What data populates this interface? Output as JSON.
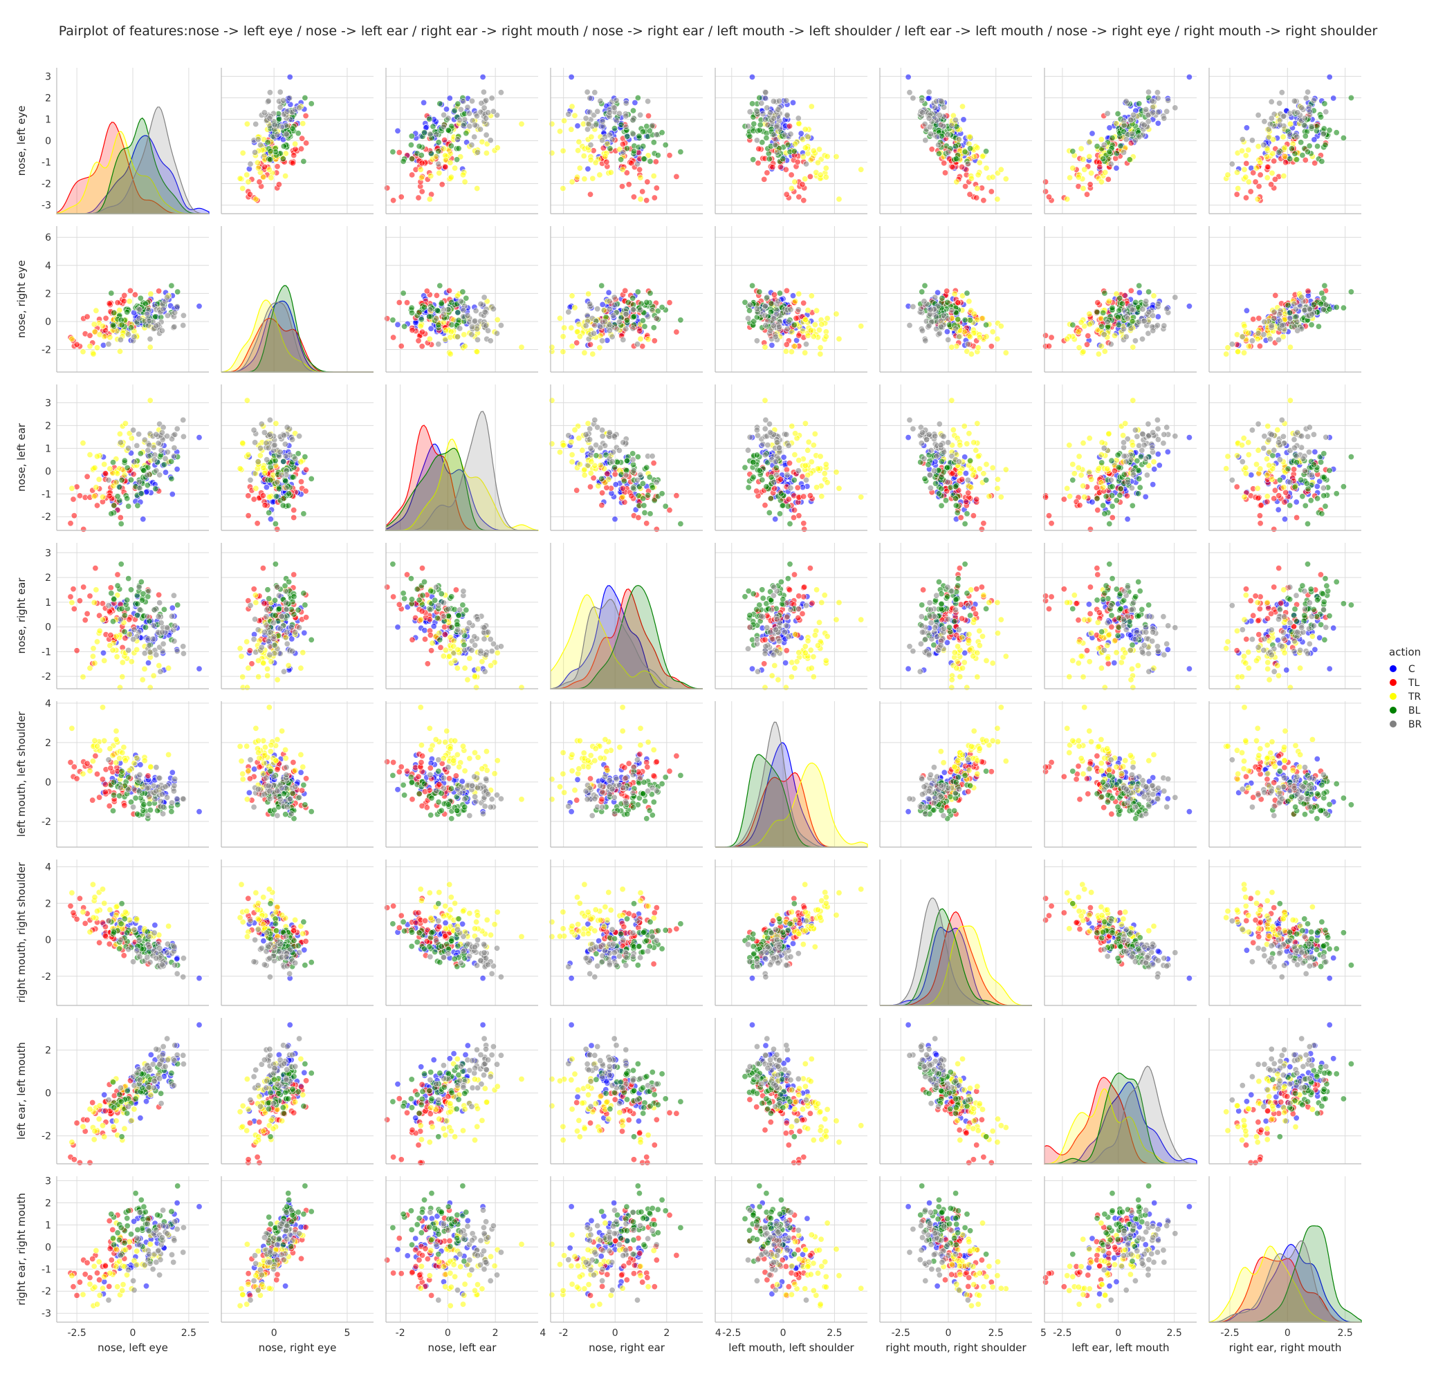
{
  "chart_data": {
    "type": "scatter",
    "title": "Pairplot of features:nose -> left eye / nose -> left ear / right ear -> right mouth / nose -> right ear / left mouth -> left shoulder / left ear -> left mouth / nose -> right eye / right mouth -> right shoulder",
    "features": [
      {
        "name": "nose, left eye",
        "range": [
          -3.4,
          3.4
        ],
        "ticks": [
          -3,
          -2,
          -1,
          0,
          1,
          2,
          3
        ],
        "xticks": [
          -2.5,
          0,
          2.5
        ]
      },
      {
        "name": "nose, right eye",
        "range": [
          -3.6,
          6.8
        ],
        "ticks": [
          -2,
          0,
          2,
          4,
          6
        ],
        "xticks": [
          0,
          5
        ]
      },
      {
        "name": "nose, left ear",
        "range": [
          -2.6,
          3.8
        ],
        "ticks": [
          -2,
          -1,
          0,
          1,
          2,
          3
        ],
        "xticks": [
          -2,
          0,
          2,
          4
        ]
      },
      {
        "name": "nose, right ear",
        "range": [
          -2.5,
          3.4
        ],
        "ticks": [
          -2,
          -1,
          0,
          1,
          2,
          3
        ],
        "xticks": [
          -2,
          0,
          2,
          4
        ]
      },
      {
        "name": "left mouth, left shoulder",
        "range": [
          -3.3,
          4.1
        ],
        "ticks": [
          -2,
          0,
          2,
          4
        ],
        "xticks": [
          -2.5,
          0,
          2.5
        ]
      },
      {
        "name": "right mouth, right shoulder",
        "range": [
          -3.6,
          4.4
        ],
        "ticks": [
          -2,
          0,
          2,
          4
        ],
        "xticks": [
          -2.5,
          0,
          2.5,
          5
        ]
      },
      {
        "name": "left ear, left mouth",
        "range": [
          -3.3,
          3.5
        ],
        "ticks": [
          -2,
          0,
          2
        ],
        "xticks": [
          -2.5,
          0,
          2.5
        ]
      },
      {
        "name": "right ear, right mouth",
        "range": [
          -3.4,
          3.2
        ],
        "ticks": [
          -3,
          -2,
          -1,
          0,
          1,
          2,
          3
        ],
        "xticks": [
          -2.5,
          0,
          2.5
        ]
      }
    ],
    "legend": {
      "title": "action",
      "placement": "center-right",
      "entries": [
        {
          "label": "C",
          "color": "#0000ff"
        },
        {
          "label": "TL",
          "color": "#ff0000"
        },
        {
          "label": "TR",
          "color": "#ffff00"
        },
        {
          "label": "BL",
          "color": "#008000"
        },
        {
          "label": "BR",
          "color": "#808080"
        }
      ]
    },
    "series": [
      {
        "name": "C",
        "means": [
          0.6,
          0.3,
          -0.3,
          -0.1,
          0.0,
          0.0,
          0.5,
          0.3
        ],
        "sd": 1.0
      },
      {
        "name": "TL",
        "means": [
          -0.9,
          0.2,
          -0.9,
          0.5,
          -0.1,
          0.4,
          -0.8,
          -0.3
        ],
        "sd": 1.0
      },
      {
        "name": "TR",
        "means": [
          -0.5,
          -0.5,
          0.6,
          -0.8,
          1.2,
          1.1,
          -0.6,
          -0.9
        ],
        "sd": 1.1
      },
      {
        "name": "BL",
        "means": [
          0.2,
          0.7,
          -0.4,
          0.9,
          -0.7,
          -0.2,
          0.0,
          1.0
        ],
        "sd": 0.9
      },
      {
        "name": "BR",
        "means": [
          1.0,
          0.0,
          1.1,
          -0.2,
          -0.3,
          -0.7,
          1.1,
          0.0
        ],
        "sd": 1.0
      }
    ],
    "grid": true
  }
}
